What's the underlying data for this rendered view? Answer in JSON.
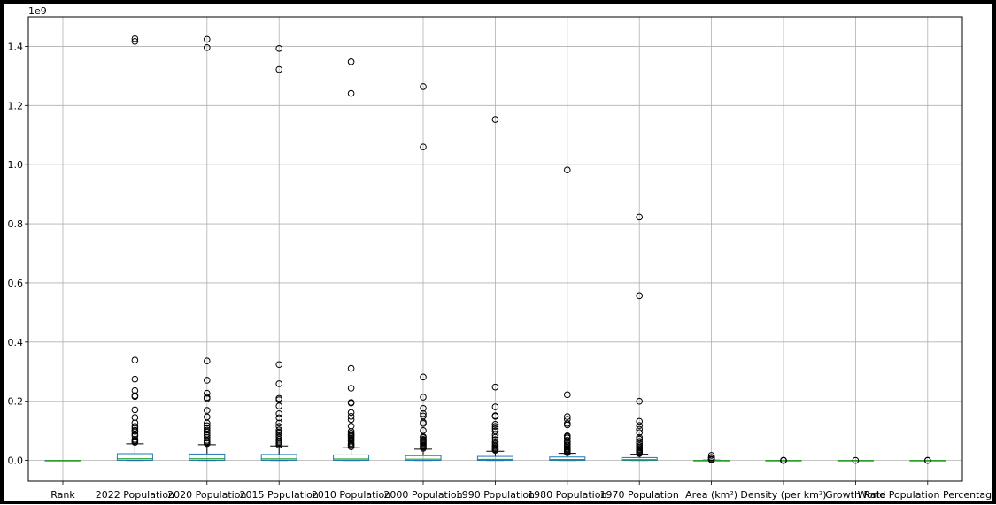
{
  "chart_data": {
    "type": "box",
    "offset_label": "1e9",
    "y_scale": 1000000000.0,
    "ylim": [
      -0.07,
      1.5
    ],
    "yticks": [
      0.0,
      0.2,
      0.4,
      0.6,
      0.8,
      1.0,
      1.2,
      1.4
    ],
    "ytick_labels": [
      "0.0",
      "0.2",
      "0.4",
      "0.6",
      "0.8",
      "1.0",
      "1.2",
      "1.4"
    ],
    "grid": true,
    "box_color": "#1f77b4",
    "median_color": "#2ca02c",
    "categories": [
      "Rank",
      "2022 Population",
      "2020 Population",
      "2015 Population",
      "2010 Population",
      "2000 Population",
      "1990 Population",
      "1980 Population",
      "1970 Population",
      "Area (km²)",
      "Density (per km²)",
      "Growth Rate",
      "World Population Percentage"
    ],
    "boxes": [
      {
        "q1": 0.0,
        "median": 0.0,
        "q3": 0.0,
        "whisker_low": 0.0,
        "whisker_high": 0.0,
        "outliers": []
      },
      {
        "q1": 0.0004,
        "median": 0.0056,
        "q3": 0.0227,
        "whisker_low": 0.0,
        "whisker_high": 0.056,
        "outliers": [
          1.426,
          1.417,
          0.339,
          0.275,
          0.236,
          0.219,
          0.216,
          0.171,
          0.145,
          0.127,
          0.115,
          0.109,
          0.102,
          0.098,
          0.089,
          0.083,
          0.071,
          0.067,
          0.064,
          0.061
        ]
      },
      {
        "q1": 0.0004,
        "median": 0.0055,
        "q3": 0.0215,
        "whisker_low": 0.0,
        "whisker_high": 0.053,
        "outliers": [
          1.424,
          1.396,
          0.336,
          0.271,
          0.227,
          0.213,
          0.209,
          0.169,
          0.147,
          0.126,
          0.117,
          0.109,
          0.102,
          0.096,
          0.089,
          0.084,
          0.077,
          0.068,
          0.064,
          0.06,
          0.057
        ]
      },
      {
        "q1": 0.0004,
        "median": 0.0052,
        "q3": 0.02,
        "whisker_low": 0.0,
        "whisker_high": 0.049,
        "outliers": [
          1.393,
          1.322,
          0.324,
          0.259,
          0.21,
          0.205,
          0.184,
          0.158,
          0.144,
          0.126,
          0.115,
          0.103,
          0.096,
          0.092,
          0.085,
          0.08,
          0.071,
          0.065,
          0.061,
          0.057,
          0.052
        ]
      },
      {
        "q1": 0.0003,
        "median": 0.0048,
        "q3": 0.0185,
        "whisker_low": 0.0,
        "whisker_high": 0.043,
        "outliers": [
          1.348,
          1.241,
          0.311,
          0.244,
          0.196,
          0.194,
          0.162,
          0.149,
          0.138,
          0.116,
          0.098,
          0.092,
          0.087,
          0.084,
          0.08,
          0.075,
          0.07,
          0.065,
          0.058,
          0.054,
          0.05,
          0.046
        ]
      },
      {
        "q1": 0.0003,
        "median": 0.0042,
        "q3": 0.016,
        "whisker_low": 0.0,
        "whisker_high": 0.038,
        "outliers": [
          1.264,
          1.06,
          0.282,
          0.214,
          0.176,
          0.158,
          0.15,
          0.129,
          0.125,
          0.101,
          0.08,
          0.077,
          0.071,
          0.068,
          0.065,
          0.062,
          0.057,
          0.053,
          0.049,
          0.045,
          0.041
        ]
      },
      {
        "q1": 0.0002,
        "median": 0.0035,
        "q3": 0.0135,
        "whisker_low": 0.0,
        "whisker_high": 0.031,
        "outliers": [
          1.153,
          0.248,
          0.181,
          0.151,
          0.149,
          0.122,
          0.115,
          0.107,
          0.099,
          0.086,
          0.078,
          0.07,
          0.062,
          0.057,
          0.052,
          0.048,
          0.044,
          0.04,
          0.037,
          0.034
        ]
      },
      {
        "q1": 0.0002,
        "median": 0.0029,
        "q3": 0.0115,
        "whisker_low": 0.0,
        "whisker_high": 0.024,
        "outliers": [
          0.982,
          0.222,
          0.148,
          0.139,
          0.125,
          0.12,
          0.083,
          0.08,
          0.076,
          0.068,
          0.064,
          0.058,
          0.053,
          0.049,
          0.044,
          0.04,
          0.037,
          0.034,
          0.031,
          0.028,
          0.026
        ]
      },
      {
        "q1": 0.0002,
        "median": 0.0025,
        "q3": 0.0095,
        "whisker_low": 0.0,
        "whisker_high": 0.021,
        "outliers": [
          0.823,
          0.557,
          0.2,
          0.132,
          0.118,
          0.105,
          0.094,
          0.078,
          0.072,
          0.064,
          0.057,
          0.05,
          0.045,
          0.041,
          0.037,
          0.034,
          0.031,
          0.028,
          0.025,
          0.023
        ]
      },
      {
        "q1": 0.0,
        "median": 0.0,
        "q3": 0.0,
        "whisker_low": 0.0,
        "whisker_high": 0.001,
        "outliers": [
          0.017,
          0.0098,
          0.0096,
          0.0095,
          0.0085,
          0.0077,
          0.0032,
          0.0029,
          0.0025,
          0.0022
        ]
      },
      {
        "q1": 0.0,
        "median": 0.0,
        "q3": 0.0,
        "whisker_low": 0.0,
        "whisker_high": 0.0,
        "outliers": [
          0.0001,
          5e-05,
          2e-05,
          1e-05
        ]
      },
      {
        "q1": 0.0,
        "median": 0.0,
        "q3": 0.0,
        "whisker_low": 0.0,
        "whisker_high": 0.0,
        "outliers": [
          0.0
        ]
      },
      {
        "q1": 0.0,
        "median": 0.0,
        "q3": 0.0,
        "whisker_low": 0.0,
        "whisker_high": 0.0,
        "outliers": [
          0.0,
          0.0
        ]
      }
    ]
  }
}
